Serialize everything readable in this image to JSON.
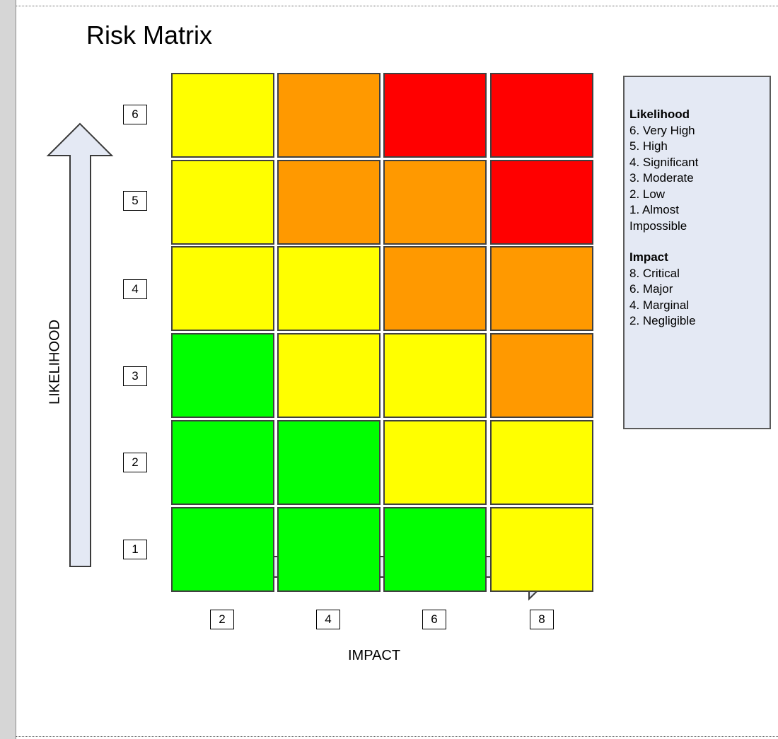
{
  "title": "Risk Matrix",
  "likelihood_axis": {
    "label": "LIKELIHOOD",
    "ticks": [
      "6",
      "5",
      "4",
      "3",
      "2",
      "1"
    ]
  },
  "impact_axis": {
    "label": "IMPACT",
    "ticks": [
      "2",
      "4",
      "6",
      "8"
    ]
  },
  "colors": {
    "green": "#00ff00",
    "yellow": "#ffff00",
    "orange": "#ff9900",
    "red": "#ff0000",
    "arrow_fill": "#e4e9f4",
    "legend_fill": "#e4e9f4"
  },
  "matrix": [
    [
      "yellow",
      "orange",
      "red",
      "red"
    ],
    [
      "yellow",
      "orange",
      "orange",
      "red"
    ],
    [
      "yellow",
      "yellow",
      "orange",
      "orange"
    ],
    [
      "green",
      "yellow",
      "yellow",
      "orange"
    ],
    [
      "green",
      "green",
      "yellow",
      "yellow"
    ],
    [
      "green",
      "green",
      "green",
      "yellow"
    ]
  ],
  "legend": {
    "likelihood_title": "Likelihood",
    "likelihood_items": [
      "6. Very High",
      "5. High",
      "4. Significant",
      "3. Moderate",
      "2. Low",
      "1. Almost",
      "Impossible"
    ],
    "impact_title": "Impact",
    "impact_items": [
      "8. Critical",
      "6. Major",
      "4. Marginal",
      "2. Negligible"
    ]
  }
}
